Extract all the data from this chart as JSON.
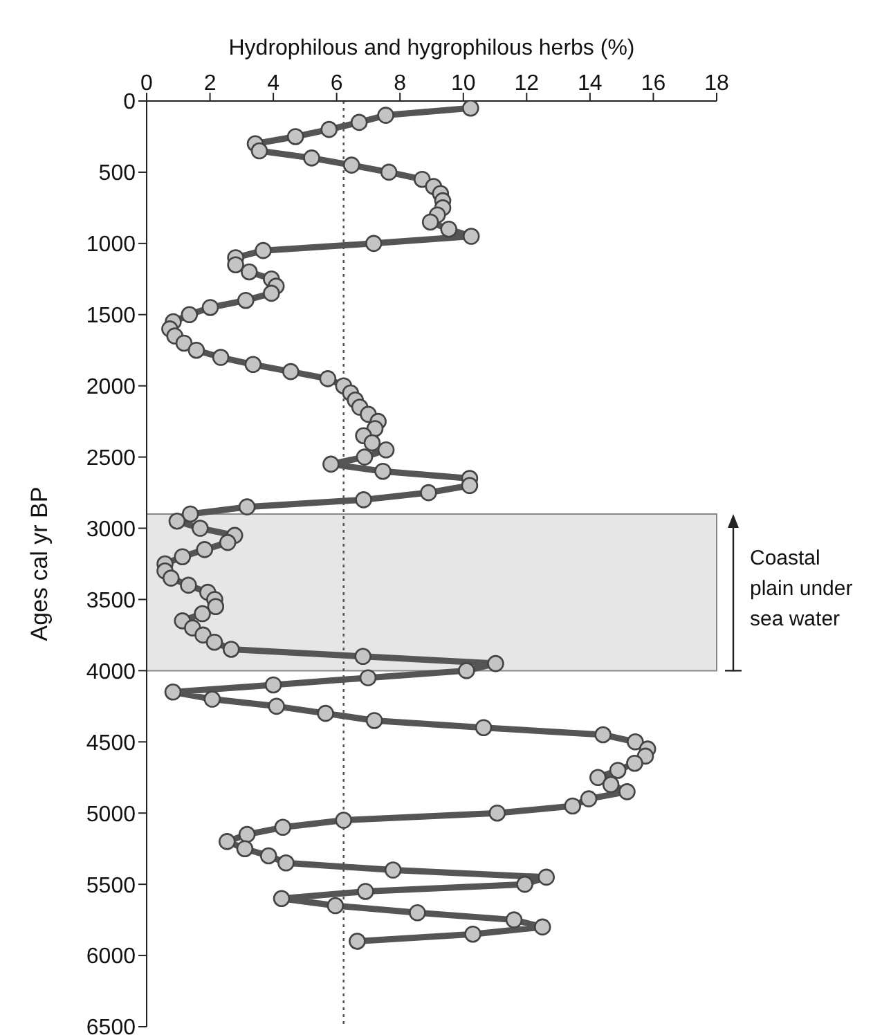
{
  "chart_data": {
    "type": "line",
    "xlabel": "Hydrophilous and hygrophilous herbs (%)",
    "ylabel": "Ages cal yr BP",
    "xlim": [
      0,
      18
    ],
    "xticks": [
      0,
      2,
      4,
      6,
      8,
      10,
      12,
      14,
      16,
      18
    ],
    "ylim": [
      6500,
      0
    ],
    "yticks": [
      0,
      500,
      1000,
      1500,
      2000,
      2500,
      3000,
      3500,
      4000,
      4500,
      5000,
      5500,
      6000,
      6500
    ],
    "marker": "circle",
    "line_style": "solid",
    "series": [
      {
        "color": "#555555",
        "x": [
          10.23,
          7.55,
          6.71,
          5.76,
          4.7,
          3.43,
          3.56,
          5.21,
          6.47,
          7.65,
          8.7,
          9.06,
          9.28,
          9.35,
          9.35,
          9.18,
          8.96,
          9.54,
          10.25,
          7.17,
          3.68,
          2.81,
          2.81,
          3.24,
          3.94,
          4.09,
          3.94,
          3.13,
          2.01,
          1.35,
          0.84,
          0.73,
          0.89,
          1.18,
          1.57,
          2.34,
          3.36,
          4.55,
          5.72,
          6.22,
          6.44,
          6.59,
          6.73,
          7.0,
          7.31,
          7.21,
          6.85,
          7.12,
          7.56,
          6.88,
          5.82,
          7.46,
          10.2,
          10.2,
          8.9,
          6.85,
          3.17,
          1.38,
          0.96,
          1.69,
          2.78,
          2.56,
          1.83,
          1.13,
          0.58,
          0.58,
          0.77,
          1.32,
          1.93,
          2.15,
          2.18,
          1.76,
          1.13,
          1.45,
          1.78,
          2.14,
          2.67,
          6.83,
          11.02,
          10.1,
          6.99,
          4.0,
          0.83,
          2.07,
          4.1,
          5.65,
          7.19,
          10.64,
          14.41,
          15.43,
          15.82,
          15.75,
          15.41,
          14.88,
          14.25,
          14.66,
          15.17,
          13.96,
          13.45,
          11.07,
          6.22,
          4.3,
          3.17,
          2.54,
          3.1,
          3.85,
          4.4,
          7.78,
          12.62,
          11.94,
          6.91,
          4.26,
          5.96,
          8.55,
          11.6,
          12.5,
          10.3,
          6.65
        ],
        "values": [
          50,
          100,
          150,
          200,
          250,
          300,
          350,
          400,
          450,
          500,
          550,
          600,
          650,
          700,
          750,
          800,
          850,
          900,
          950,
          1000,
          1050,
          1100,
          1150,
          1200,
          1250,
          1300,
          1350,
          1400,
          1450,
          1500,
          1550,
          1600,
          1650,
          1700,
          1750,
          1800,
          1850,
          1900,
          1950,
          2000,
          2050,
          2100,
          2150,
          2200,
          2250,
          2300,
          2350,
          2400,
          2450,
          2500,
          2550,
          2600,
          2650,
          2700,
          2750,
          2800,
          2850,
          2900,
          2950,
          3000,
          3050,
          3100,
          3150,
          3200,
          3250,
          3300,
          3350,
          3400,
          3450,
          3500,
          3550,
          3600,
          3650,
          3700,
          3750,
          3800,
          3850,
          3900,
          3950,
          4000,
          4050,
          4100,
          4150,
          4200,
          4250,
          4300,
          4350,
          4400,
          4450,
          4500,
          4550,
          4600,
          4650,
          4700,
          4750,
          4800,
          4850,
          4900,
          4950,
          5000,
          5050,
          5100,
          5150,
          5200,
          5250,
          5300,
          5350,
          5400,
          5450,
          5500,
          5550,
          5600,
          5650,
          5700,
          5750,
          5800,
          5850,
          5900
        ]
      }
    ],
    "ref_lines": [
      {
        "axis": "x",
        "value": 6.22,
        "color": "#555555",
        "line_style": "dotted"
      }
    ],
    "bands": [
      {
        "axis": "y",
        "from": 2900,
        "to": 4000,
        "label": "Coastal plain under sea water",
        "color": "#e6e6e6"
      }
    ]
  }
}
